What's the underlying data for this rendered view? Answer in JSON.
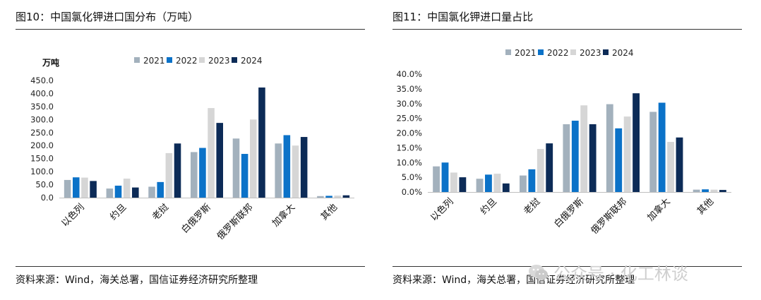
{
  "colors": {
    "2021": "#a3b1bd",
    "2022": "#0b72c8",
    "2023": "#d6d6d6",
    "2024": "#0c2b57"
  },
  "watermark": {
    "text": "公众号 · 化工林谈",
    "icon": "wechat-icon"
  },
  "charts": [
    {
      "title": "图10：中国氯化钾进口国分布（万吨）",
      "source": "资料来源：Wind，海关总署，国信证券经济研究所整理",
      "unit_label": "万吨",
      "tick_labels": [
        "0.0",
        "50.0",
        "100.0",
        "150.0",
        "200.0",
        "250.0",
        "300.0",
        "350.0",
        "400.0",
        "450.0"
      ],
      "legend": [
        "2021",
        "2022",
        "2023",
        "2024"
      ]
    },
    {
      "title": "图11：中国氯化钾进口量占比",
      "source": "资料来源：Wind，海关总署，国信证券经济研究所整理",
      "unit_label": "",
      "tick_labels": [
        "0.0%",
        "5.0%",
        "10.0%",
        "15.0%",
        "20.0%",
        "25.0%",
        "30.0%",
        "35.0%",
        "40.0%"
      ],
      "legend": [
        "2021",
        "2022",
        "2023",
        "2024"
      ]
    }
  ],
  "chart_data": [
    {
      "type": "bar",
      "title": "图10：中国氯化钾进口国分布（万吨）",
      "ylabel": "万吨",
      "ylim": [
        0,
        450
      ],
      "yticks": [
        0,
        50,
        100,
        150,
        200,
        250,
        300,
        350,
        400,
        450
      ],
      "categories": [
        "以色列",
        "约旦",
        "老挝",
        "白俄罗斯",
        "俄罗斯联邦",
        "加拿大",
        "其他"
      ],
      "legend_position": "top",
      "series": [
        {
          "name": "2021",
          "values": [
            68,
            35,
            42,
            175,
            227,
            208,
            6
          ]
        },
        {
          "name": "2022",
          "values": [
            78,
            46,
            60,
            191,
            168,
            240,
            7
          ]
        },
        {
          "name": "2023",
          "values": [
            77,
            73,
            171,
            344,
            300,
            200,
            8
          ]
        },
        {
          "name": "2024",
          "values": [
            64,
            39,
            208,
            287,
            423,
            233,
            9
          ]
        }
      ]
    },
    {
      "type": "bar",
      "title": "图11：中国氯化钾进口量占比",
      "ylabel": "",
      "ylim": [
        0,
        40
      ],
      "yticks": [
        0,
        5,
        10,
        15,
        20,
        25,
        30,
        35,
        40
      ],
      "categories": [
        "以色列",
        "约旦",
        "老挝",
        "白俄罗斯",
        "俄罗斯联邦",
        "加拿大",
        "其他"
      ],
      "legend_position": "top",
      "series": [
        {
          "name": "2021",
          "values": [
            8.7,
            4.5,
            5.6,
            23.0,
            29.8,
            27.2,
            0.8
          ]
        },
        {
          "name": "2022",
          "values": [
            10.0,
            5.9,
            7.7,
            24.2,
            21.6,
            30.3,
            0.9
          ]
        },
        {
          "name": "2023",
          "values": [
            6.6,
            6.2,
            14.6,
            29.4,
            25.6,
            17.0,
            0.8
          ]
        },
        {
          "name": "2024",
          "values": [
            5.0,
            2.9,
            16.5,
            23.0,
            33.5,
            18.5,
            0.7
          ]
        }
      ]
    }
  ]
}
